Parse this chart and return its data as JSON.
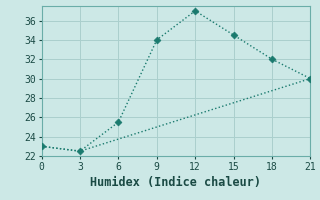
{
  "xlabel": "Humidex (Indice chaleur)",
  "bg_color": "#cce8e6",
  "grid_color": "#aacfcd",
  "line_color": "#1a7a6e",
  "xlim": [
    0,
    21
  ],
  "ylim": [
    22,
    37.5
  ],
  "xticks": [
    0,
    3,
    6,
    9,
    12,
    15,
    18,
    21
  ],
  "yticks": [
    22,
    24,
    26,
    28,
    30,
    32,
    34,
    36
  ],
  "line1_x": [
    0,
    3,
    6,
    9,
    12,
    15,
    18,
    21
  ],
  "line1_y": [
    23,
    22.5,
    25.5,
    34,
    37,
    34.5,
    32,
    30
  ],
  "line2_x": [
    0,
    3,
    21
  ],
  "line2_y": [
    23,
    22.5,
    30
  ],
  "markersize": 3.5,
  "linewidth": 1.0,
  "xlabel_fontsize": 8.5,
  "tick_fontsize": 7
}
